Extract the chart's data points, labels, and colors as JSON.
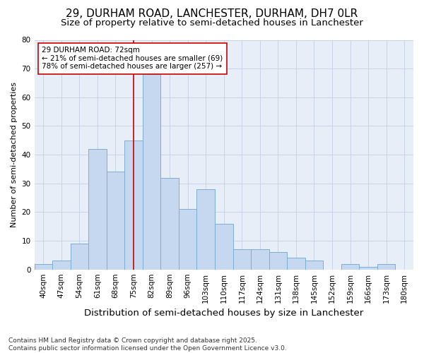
{
  "title1": "29, DURHAM ROAD, LANCHESTER, DURHAM, DH7 0LR",
  "title2": "Size of property relative to semi-detached houses in Lanchester",
  "xlabel": "Distribution of semi-detached houses by size in Lanchester",
  "ylabel": "Number of semi-detached properties",
  "categories": [
    "40sqm",
    "47sqm",
    "54sqm",
    "61sqm",
    "68sqm",
    "75sqm",
    "82sqm",
    "89sqm",
    "96sqm",
    "103sqm",
    "110sqm",
    "117sqm",
    "124sqm",
    "131sqm",
    "138sqm",
    "145sqm",
    "152sqm",
    "159sqm",
    "166sqm",
    "173sqm",
    "180sqm"
  ],
  "values": [
    2,
    3,
    9,
    42,
    34,
    45,
    68,
    32,
    21,
    28,
    16,
    7,
    7,
    6,
    4,
    3,
    0,
    2,
    1,
    2,
    0
  ],
  "bar_color": "#C5D8F0",
  "bar_edge_color": "#7BAFD4",
  "annotation_text": "29 DURHAM ROAD: 72sqm\n← 21% of semi-detached houses are smaller (69)\n78% of semi-detached houses are larger (257) →",
  "annotation_box_color": "#ffffff",
  "annotation_box_edge_color": "#cc0000",
  "vline_color": "#cc0000",
  "vline_x": 5,
  "ylim": [
    0,
    80
  ],
  "yticks": [
    0,
    10,
    20,
    30,
    40,
    50,
    60,
    70,
    80
  ],
  "grid_color": "#c8d4e8",
  "bg_color": "#E8EEF8",
  "footer": "Contains HM Land Registry data © Crown copyright and database right 2025.\nContains public sector information licensed under the Open Government Licence v3.0.",
  "title1_fontsize": 11,
  "title2_fontsize": 9.5,
  "xlabel_fontsize": 9.5,
  "ylabel_fontsize": 8,
  "tick_fontsize": 7.5,
  "annotation_fontsize": 7.5,
  "footer_fontsize": 6.5
}
